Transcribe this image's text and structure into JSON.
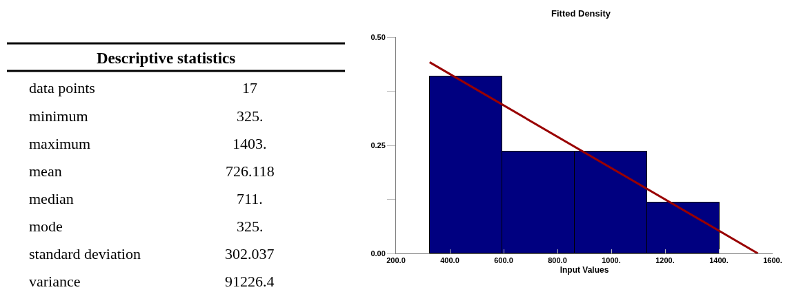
{
  "chart_data": [
    {
      "type": "other",
      "title": "Descriptive statistics",
      "annotations": [
        "data points",
        "17",
        "minimum",
        "325.",
        "maximum",
        "1403.",
        "mean",
        "726.118",
        "median",
        "711.",
        "mode",
        "325.",
        "standard deviation",
        "302.037",
        "variance",
        "91226.4"
      ]
    },
    {
      "type": "histogram",
      "title": "Fitted Density",
      "xlabel": "Input Values",
      "bins": [
        325,
        594.5,
        864,
        1133.5,
        1403
      ],
      "values": [
        0.41,
        0.235,
        0.235,
        0.118
      ],
      "color": "#000080",
      "series": [
        {
          "type": "line",
          "x": [
            325,
            1545
          ],
          "values": [
            0.442,
            0
          ],
          "color": "#990000"
        }
      ],
      "xlim": [
        200,
        1600
      ],
      "xticks": [
        {
          "value": 200,
          "label": "200.0"
        },
        {
          "value": 400,
          "label": "400.0"
        },
        {
          "value": 600,
          "label": "600.0"
        },
        {
          "value": 800,
          "label": "800.0"
        },
        {
          "value": 1000,
          "label": "1000."
        },
        {
          "value": 1200,
          "label": "1200."
        },
        {
          "value": 1400,
          "label": "1400."
        },
        {
          "value": 1600,
          "label": "1600."
        }
      ],
      "ylim": [
        0,
        0.5
      ],
      "yticks": [
        {
          "value": 0,
          "label": "0.00"
        },
        {
          "value": 0.125,
          "label": null
        },
        {
          "value": 0.25,
          "label": "0.25"
        },
        {
          "value": 0.375,
          "label": null
        },
        {
          "value": 0.5,
          "label": "0.50"
        }
      ]
    }
  ]
}
